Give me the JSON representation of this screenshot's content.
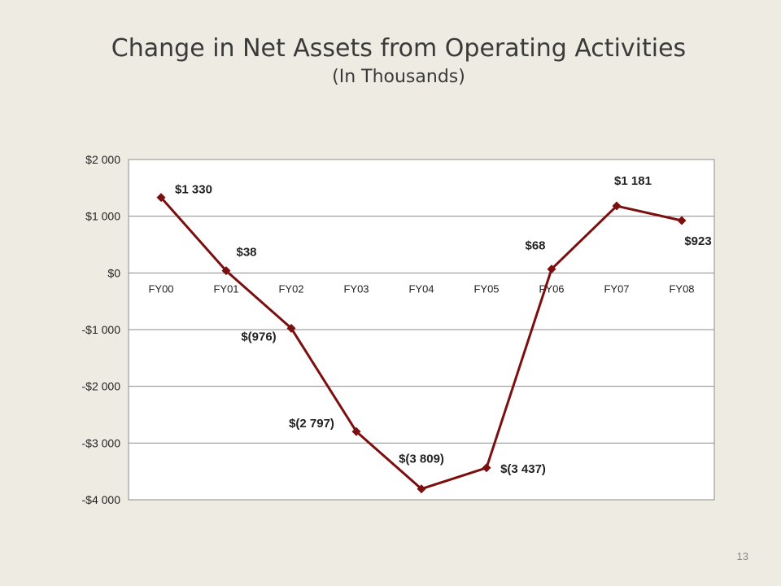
{
  "slide": {
    "title": "Change in Net Assets from Operating Activities",
    "subtitle": "(In Thousands)",
    "page_number": "13"
  },
  "chart_data": {
    "type": "line",
    "title": "",
    "xlabel": "",
    "ylabel": "",
    "categories": [
      "FY00",
      "FY01",
      "FY02",
      "FY03",
      "FY04",
      "FY05",
      "FY06",
      "FY07",
      "FY08"
    ],
    "series": [
      {
        "values": [
          1330,
          38,
          -976,
          -2797,
          -3809,
          -3437,
          68,
          1181,
          923
        ],
        "data_labels": [
          "$1 330",
          "$38",
          "$(976)",
          "$(2 797)",
          "$(3 809)",
          "$(3 437)",
          "$68",
          "$1 181",
          "$923"
        ],
        "color": "#7b0f0f",
        "marker": "diamond"
      }
    ],
    "ylim": [
      -4000,
      2000
    ],
    "yticks": [
      2000,
      1000,
      0,
      -1000,
      -2000,
      -3000,
      -4000
    ],
    "ytick_labels": [
      "$2 000",
      "$1 000",
      "$0",
      "-$1 000",
      "-$2 000",
      "-$3 000",
      "-$4 000"
    ],
    "grid": true,
    "legend": "none"
  }
}
